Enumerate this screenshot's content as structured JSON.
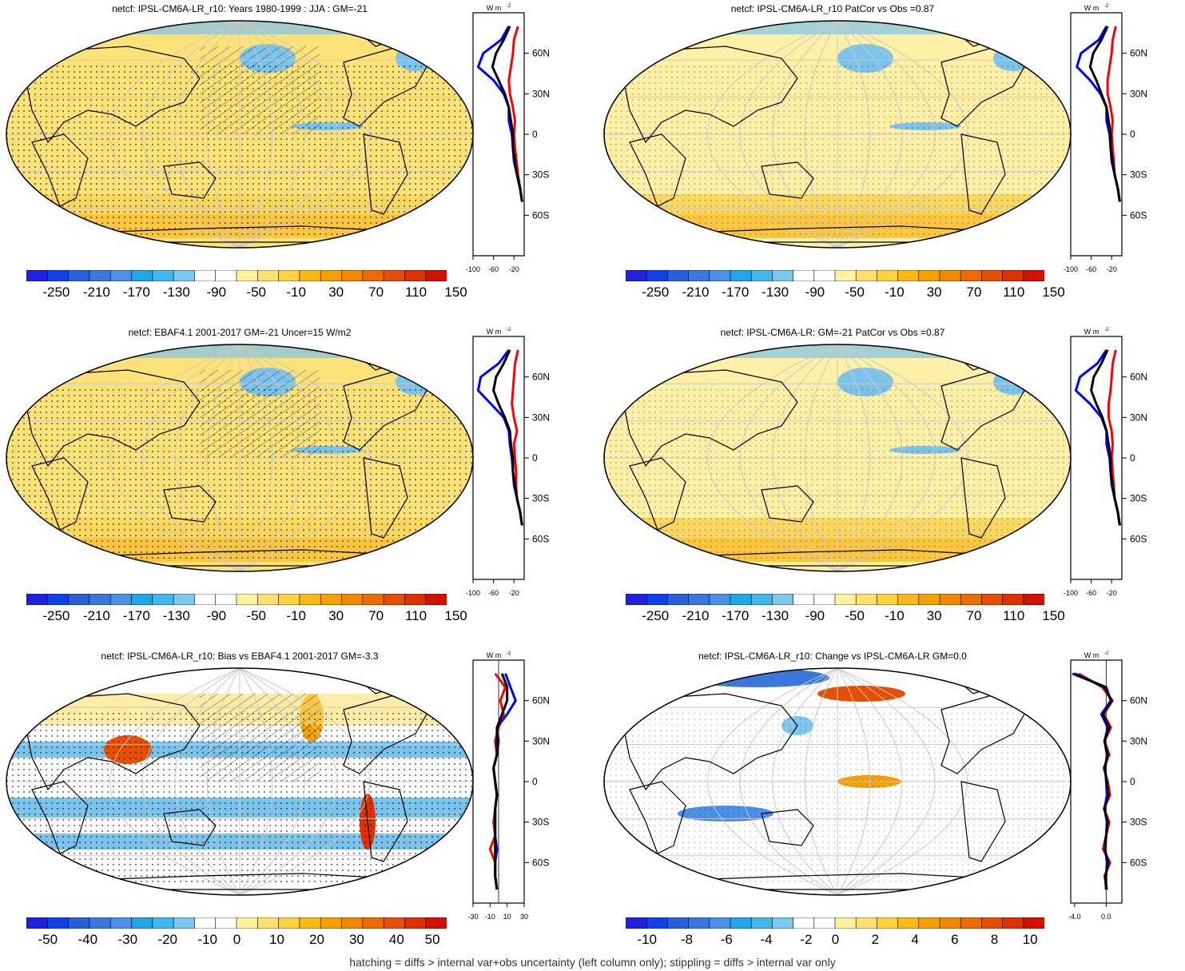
{
  "colors": {
    "cb_main": [
      "#2020e0",
      "#1040e8",
      "#2a5fd8",
      "#3a78e0",
      "#4a90e8",
      "#1ea6e8",
      "#3fb6ec",
      "#7cc8ec",
      "#ffffff",
      "#ffffff",
      "#fff1a0",
      "#ffe070",
      "#ffd040",
      "#f8b818",
      "#f4a000",
      "#f08800",
      "#ec6a00",
      "#e84e00",
      "#e03000",
      "#d41000"
    ],
    "cb_bias": [
      "#2020e0",
      "#1040e8",
      "#2a5fd8",
      "#3a78e0",
      "#4a90e8",
      "#1ea6e8",
      "#3fb6ec",
      "#7cc8ec",
      "#ffffff",
      "#ffffff",
      "#fff1a0",
      "#ffe070",
      "#ffd040",
      "#f8b818",
      "#f4a000",
      "#f08800",
      "#ec6a00",
      "#e84e00",
      "#e03000",
      "#d41000"
    ],
    "map_base_warm": "#fde27a",
    "map_base_light": "#fff0a8",
    "map_neg": "#7cc3ec",
    "model_line": "#ff0000",
    "obs_line": "#0000ff",
    "ens_line": "#000000"
  },
  "panels": [
    {
      "title": "netcf: IPSL-CM6A-LR_r10: Years 1980-1999 : JJA : GM=-21",
      "cb_labels": [
        "-250",
        "-210",
        "-170",
        "-130",
        "-90",
        "-50",
        "-10",
        "30",
        "70",
        "110",
        "150"
      ],
      "zonal_unit": "W m",
      "zonal_unit_sup": "-2",
      "zonal_xticks": [
        "-100",
        "-60",
        "-20"
      ],
      "zonal_lat_labels": [
        "60N",
        "30N",
        "0",
        "30S",
        "60S"
      ],
      "chart_data": {
        "type": "line",
        "xlabel": "W m-2",
        "xlim": [
          -100,
          0
        ],
        "ylim": [
          -90,
          90
        ],
        "y_lat": [
          80,
          70,
          60,
          50,
          40,
          30,
          20,
          10,
          0,
          -10,
          -20,
          -30,
          -40,
          -50
        ],
        "series": [
          {
            "values": [
              -12,
              -20,
              -22,
              -26,
              -30,
              -28,
              -22,
              -18,
              -20,
              -18,
              -15,
              -12,
              -8,
              -4
            ]
          },
          {
            "values": [
              -30,
              -45,
              -80,
              -90,
              -60,
              -40,
              -30,
              -30,
              -24,
              -22,
              -20,
              -14,
              -8,
              -4
            ]
          },
          {
            "values": [
              -28,
              -40,
              -55,
              -62,
              -50,
              -38,
              -30,
              -26,
              -22,
              -22,
              -18,
              -14,
              -8,
              -4
            ]
          }
        ]
      }
    },
    {
      "title": "netcf: IPSL-CM6A-LR_r10 PatCor vs Obs =0.87",
      "cb_labels": [
        "-250",
        "-210",
        "-170",
        "-130",
        "-90",
        "-50",
        "-10",
        "30",
        "70",
        "110",
        "150"
      ],
      "zonal_unit": "W m",
      "zonal_unit_sup": "-2",
      "zonal_xticks": [
        "-100",
        "-60",
        "-20"
      ],
      "zonal_lat_labels": [
        "60N",
        "30N",
        "0",
        "30S",
        "60S"
      ],
      "chart_data": {
        "type": "line",
        "xlabel": "W m-2",
        "xlim": [
          -100,
          0
        ],
        "ylim": [
          -90,
          90
        ],
        "y_lat": [
          80,
          70,
          60,
          50,
          40,
          30,
          20,
          10,
          0,
          -10,
          -20,
          -30,
          -40,
          -50
        ],
        "series": [
          {
            "values": [
              -12,
              -18,
              -20,
              -24,
              -28,
              -28,
              -22,
              -18,
              -20,
              -18,
              -16,
              -14,
              -8,
              -4
            ]
          },
          {
            "values": [
              -30,
              -45,
              -80,
              -88,
              -62,
              -42,
              -30,
              -30,
              -24,
              -22,
              -20,
              -14,
              -8,
              -4
            ]
          },
          {
            "values": [
              -28,
              -40,
              -56,
              -62,
              -50,
              -40,
              -30,
              -26,
              -22,
              -22,
              -18,
              -14,
              -8,
              -4
            ]
          }
        ]
      }
    },
    {
      "title": "netcf: EBAF4.1 2001-2017 GM=-21 Uncer=15 W/m2",
      "cb_labels": [
        "-250",
        "-210",
        "-170",
        "-130",
        "-90",
        "-50",
        "-10",
        "30",
        "70",
        "110",
        "150"
      ],
      "zonal_unit": "W m",
      "zonal_unit_sup": "-2",
      "zonal_xticks": [
        "-100",
        "-60",
        "-20"
      ],
      "zonal_lat_labels": [
        "60N",
        "30N",
        "0",
        "30S",
        "60S"
      ],
      "chart_data": {
        "type": "line",
        "xlabel": "W m-2",
        "xlim": [
          -100,
          0
        ],
        "ylim": [
          -90,
          90
        ],
        "y_lat": [
          80,
          70,
          60,
          50,
          40,
          30,
          20,
          10,
          0,
          -10,
          -20,
          -30,
          -40,
          -50
        ],
        "series": [
          {
            "values": [
              -12,
              -18,
              -20,
              -22,
              -24,
              -20,
              -14,
              -20,
              -18,
              -16,
              -16,
              -14,
              -8,
              -4
            ]
          },
          {
            "values": [
              -30,
              -50,
              -85,
              -90,
              -65,
              -40,
              -30,
              -28,
              -24,
              -22,
              -20,
              -14,
              -8,
              -4
            ]
          },
          {
            "values": [
              -28,
              -40,
              -55,
              -60,
              -50,
              -38,
              -28,
              -26,
              -22,
              -22,
              -18,
              -14,
              -8,
              -4
            ]
          }
        ]
      }
    },
    {
      "title": "netcf: IPSL-CM6A-LR: GM=-21 PatCor vs Obs =0.87",
      "cb_labels": [
        "-250",
        "-210",
        "-170",
        "-130",
        "-90",
        "-50",
        "-10",
        "30",
        "70",
        "110",
        "150"
      ],
      "zonal_unit": "W m",
      "zonal_unit_sup": "-2",
      "zonal_xticks": [
        "-100",
        "-60",
        "-20"
      ],
      "zonal_lat_labels": [
        "60N",
        "30N",
        "0",
        "30S",
        "60S"
      ],
      "chart_data": {
        "type": "line",
        "xlabel": "W m-2",
        "xlim": [
          -100,
          0
        ],
        "ylim": [
          -90,
          90
        ],
        "y_lat": [
          80,
          70,
          60,
          50,
          40,
          30,
          20,
          10,
          0,
          -10,
          -20,
          -30,
          -40,
          -50
        ],
        "series": [
          {
            "values": [
              -12,
              -18,
              -20,
              -22,
              -26,
              -26,
              -20,
              -18,
              -20,
              -18,
              -16,
              -14,
              -8,
              -4
            ]
          },
          {
            "values": [
              -30,
              -48,
              -82,
              -90,
              -62,
              -40,
              -30,
              -30,
              -24,
              -22,
              -20,
              -14,
              -8,
              -4
            ]
          },
          {
            "values": [
              -28,
              -40,
              -55,
              -60,
              -50,
              -38,
              -30,
              -26,
              -22,
              -22,
              -18,
              -14,
              -8,
              -4
            ]
          }
        ]
      }
    },
    {
      "title": "netcf: IPSL-CM6A-LR_r10: Bias vs EBAF4.1 2001-2017 GM=-3.3",
      "cb_labels": [
        "-50",
        "-40",
        "-30",
        "-20",
        "-10",
        "0",
        "10",
        "20",
        "30",
        "40",
        "50"
      ],
      "zonal_unit": "W m",
      "zonal_unit_sup": "-2",
      "zonal_xticks": [
        "-30",
        "-10",
        "10",
        "30"
      ],
      "zonal_lat_labels": [
        "60N",
        "30N",
        "0",
        "30S",
        "60S"
      ],
      "chart_data": {
        "type": "line",
        "xlabel": "W m-2",
        "xlim": [
          -30,
          30
        ],
        "ylim": [
          -90,
          90
        ],
        "y_lat": [
          80,
          70,
          60,
          50,
          40,
          30,
          20,
          10,
          0,
          -10,
          -20,
          -30,
          -40,
          -50,
          -60,
          -70,
          -80
        ],
        "series": [
          {
            "values": [
              -4,
              8,
              2,
              6,
              0,
              -4,
              -2,
              -6,
              -4,
              -2,
              -4,
              -6,
              -4,
              -10,
              -4,
              -4,
              -2
            ]
          },
          {
            "values": [
              8,
              14,
              20,
              10,
              -2,
              0,
              -2,
              -6,
              -4,
              -2,
              -4,
              -4,
              -4,
              -2,
              -4,
              -4,
              -2
            ]
          },
          {
            "values": [
              4,
              10,
              10,
              4,
              -2,
              -2,
              -2,
              -6,
              -4,
              -2,
              -4,
              -4,
              -4,
              -4,
              -4,
              -4,
              -2
            ]
          }
        ]
      }
    },
    {
      "title": "netcf: IPSL-CM6A-LR_r10: Change vs IPSL-CM6A-LR GM=0.0",
      "cb_labels": [
        "-10",
        "-8",
        "-6",
        "-4",
        "-2",
        "0",
        "2",
        "4",
        "6",
        "8",
        "10"
      ],
      "zonal_unit": "W m",
      "zonal_unit_sup": "-2",
      "zonal_xticks": [
        "-4.0",
        "0.0"
      ],
      "zonal_lat_labels": [
        "60N",
        "30N",
        "0",
        "30S",
        "60S"
      ],
      "chart_data": {
        "type": "line",
        "xlabel": "W m-2",
        "xlim": [
          -4.5,
          2
        ],
        "ylim": [
          -90,
          90
        ],
        "y_lat": [
          80,
          70,
          60,
          50,
          40,
          30,
          20,
          10,
          0,
          -10,
          -20,
          -30,
          -40,
          -50,
          -60,
          -70,
          -80
        ],
        "series": [
          {
            "values": [
              -3.5,
              -0.5,
              0.8,
              -0.3,
              0.6,
              -0.2,
              0.4,
              -0.3,
              0.2,
              0.5,
              -0.3,
              0.4,
              0.0,
              -0.4,
              0.5,
              -0.2,
              0.1
            ]
          },
          {
            "values": [
              -4.3,
              0.0,
              0.6,
              -0.6,
              0.2,
              -0.2,
              0.1,
              -0.1,
              0.0,
              0.1,
              -0.2,
              0.1,
              0.0,
              -0.1,
              0.1,
              0.0,
              0.0
            ]
          },
          {
            "values": [
              -4.0,
              -0.2,
              0.7,
              -0.4,
              0.4,
              -0.2,
              0.2,
              -0.2,
              0.1,
              0.3,
              -0.2,
              0.2,
              0.0,
              -0.2,
              0.3,
              -0.1,
              0.0
            ]
          }
        ]
      }
    }
  ],
  "footer": "hatching = diffs > internal var+obs uncertainty (left column only); stippling = diffs > internal var only"
}
